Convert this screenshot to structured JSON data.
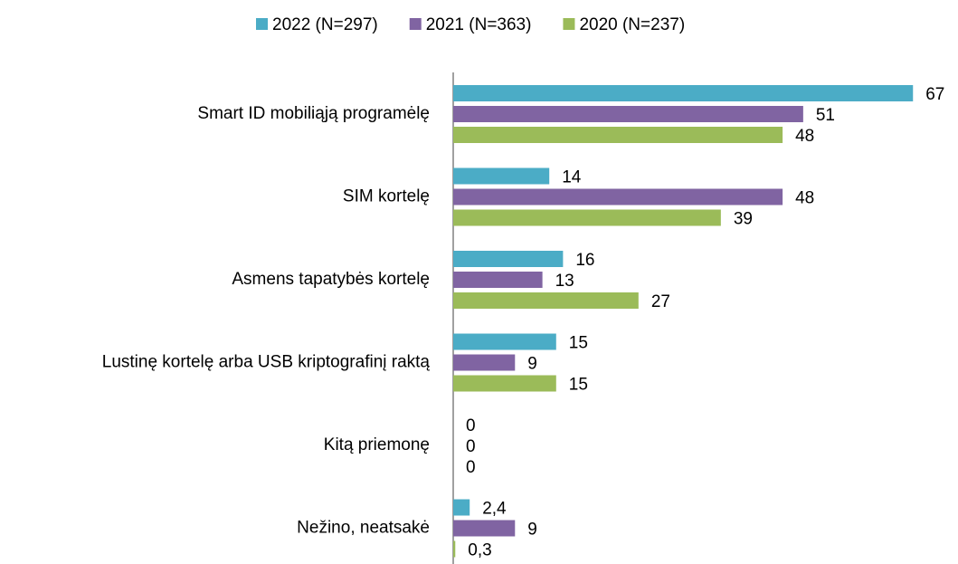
{
  "chart_data": {
    "type": "hbar",
    "categories": [
      "Smart ID mobiliąją programėlę",
      "SIM kortelę",
      "Asmens tapatybės kortelę",
      "Lustinę kortelę arba USB kriptografinį raktą",
      "Kitą priemonę",
      "Nežino, neatsakė"
    ],
    "series": [
      {
        "name": "2022 (N=297)",
        "color": "#4bacc6",
        "values": [
          67,
          14,
          16,
          15,
          0,
          2.4
        ],
        "value_labels": [
          "67",
          "14",
          "16",
          "15",
          "0",
          "2,4"
        ]
      },
      {
        "name": "2021 (N=363)",
        "color": "#8064a2",
        "values": [
          51,
          48,
          13,
          9,
          0,
          9
        ],
        "value_labels": [
          "51",
          "48",
          "13",
          "9",
          "0",
          "9"
        ]
      },
      {
        "name": "2020 (N=237)",
        "color": "#9bbb59",
        "values": [
          48,
          39,
          27,
          15,
          0,
          0.3
        ],
        "value_labels": [
          "48",
          "39",
          "27",
          "15",
          "0",
          "0,3"
        ]
      }
    ],
    "xlim": [
      0,
      70
    ]
  }
}
